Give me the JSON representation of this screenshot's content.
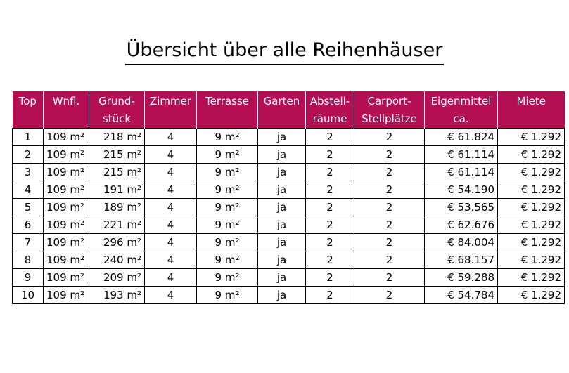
{
  "title": "Übersicht über alle Reihenhäuser",
  "header_color": "#b40e54",
  "columns": [
    {
      "line1": "Top",
      "line2": ""
    },
    {
      "line1": "Wnfl.",
      "line2": ""
    },
    {
      "line1": "Grund-",
      "line2": "stück"
    },
    {
      "line1": "Zimmer",
      "line2": ""
    },
    {
      "line1": "Terrasse",
      "line2": ""
    },
    {
      "line1": "Garten",
      "line2": ""
    },
    {
      "line1": "Abstell-",
      "line2": "räume"
    },
    {
      "line1": "Carport-",
      "line2": "Stellplätze"
    },
    {
      "line1": "Eigenmittel",
      "line2": "ca."
    },
    {
      "line1": "Miete",
      "line2": ""
    }
  ],
  "rows": [
    [
      "1",
      "109 m²",
      "218 m²",
      "4",
      "9 m²",
      "ja",
      "2",
      "2",
      "€ 61.824",
      "€ 1.292"
    ],
    [
      "2",
      "109 m²",
      "215 m²",
      "4",
      "9 m²",
      "ja",
      "2",
      "2",
      "€ 61.114",
      "€ 1.292"
    ],
    [
      "3",
      "109 m²",
      "215 m²",
      "4",
      "9 m²",
      "ja",
      "2",
      "2",
      "€ 61.114",
      "€ 1.292"
    ],
    [
      "4",
      "109 m²",
      "191 m²",
      "4",
      "9 m²",
      "ja",
      "2",
      "2",
      "€ 54.190",
      "€ 1.292"
    ],
    [
      "5",
      "109 m²",
      "189 m²",
      "4",
      "9 m²",
      "ja",
      "2",
      "2",
      "€ 53.565",
      "€ 1.292"
    ],
    [
      "6",
      "109 m²",
      "221 m²",
      "4",
      "9 m²",
      "ja",
      "2",
      "2",
      "€ 62.676",
      "€ 1.292"
    ],
    [
      "7",
      "109 m²",
      "296 m²",
      "4",
      "9 m²",
      "ja",
      "2",
      "2",
      "€ 84.004",
      "€ 1.292"
    ],
    [
      "8",
      "109 m²",
      "240 m²",
      "4",
      "9 m²",
      "ja",
      "2",
      "2",
      "€ 68.157",
      "€ 1.292"
    ],
    [
      "9",
      "109 m²",
      "209 m²",
      "4",
      "9 m²",
      "ja",
      "2",
      "2",
      "€ 59.288",
      "€ 1.292"
    ],
    [
      "10",
      "109 m²",
      "193 m²",
      "4",
      "9 m²",
      "ja",
      "2",
      "2",
      "€ 54.784",
      "€ 1.292"
    ]
  ]
}
